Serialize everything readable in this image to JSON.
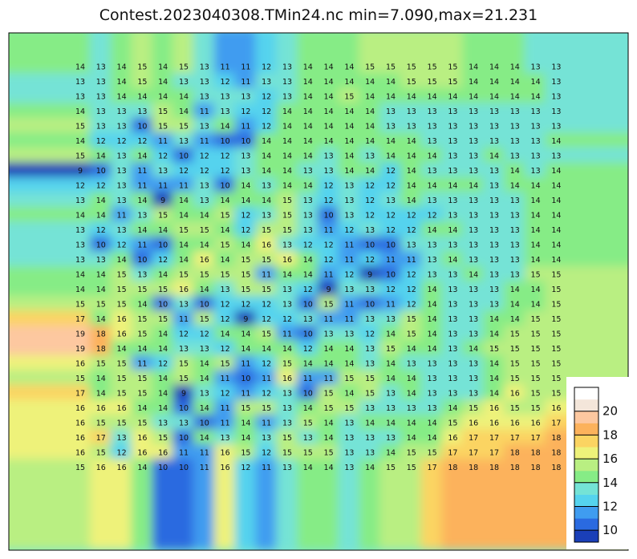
{
  "title": "Contest.2023040308.TMin24.nc min=7.090,max=21.231",
  "chart_data": {
    "type": "heatmap",
    "title": "Contest.2023040308.TMin24.nc min=7.090,max=21.231",
    "min": 7.09,
    "max": 21.231,
    "colorbar": {
      "placement": "bottom-right inset",
      "tick_labels": [
        "10",
        "12",
        "14",
        "16",
        "18",
        "20"
      ],
      "levels": [
        9,
        10,
        11,
        12,
        13,
        14,
        15,
        16,
        17,
        18,
        19,
        20,
        21
      ],
      "colors": [
        "#1a3fb8",
        "#2a6ae0",
        "#3f9cf0",
        "#55d3ee",
        "#74e3d6",
        "#86ec86",
        "#b9ef82",
        "#eef27a",
        "#fbd462",
        "#fcb25c",
        "#fdc8a0",
        "#f4e6da",
        "#ffffff"
      ]
    },
    "grid_values": [
      [
        14,
        13,
        14,
        15,
        14,
        15,
        13,
        11,
        11,
        12,
        13,
        14,
        14,
        14,
        15,
        15,
        15,
        15,
        15,
        14,
        14,
        14,
        13,
        13
      ],
      [
        13,
        13,
        14,
        15,
        14,
        13,
        13,
        12,
        11,
        13,
        13,
        14,
        14,
        14,
        14,
        14,
        15,
        15,
        15,
        14,
        14,
        14,
        14,
        13
      ],
      [
        13,
        13,
        14,
        14,
        14,
        14,
        13,
        13,
        13,
        12,
        13,
        14,
        14,
        15,
        14,
        14,
        14,
        14,
        14,
        14,
        14,
        14,
        14,
        13
      ],
      [
        14,
        13,
        13,
        13,
        15,
        14,
        11,
        13,
        12,
        12,
        14,
        14,
        14,
        14,
        14,
        13,
        13,
        13,
        13,
        13,
        13,
        13,
        13,
        13
      ],
      [
        15,
        13,
        13,
        10,
        15,
        15,
        13,
        14,
        11,
        12,
        14,
        14,
        14,
        14,
        14,
        13,
        13,
        13,
        13,
        13,
        13,
        13,
        13,
        13
      ],
      [
        14,
        12,
        12,
        12,
        11,
        13,
        11,
        10,
        10,
        14,
        14,
        14,
        14,
        14,
        14,
        14,
        14,
        13,
        13,
        13,
        13,
        13,
        13,
        14
      ],
      [
        15,
        14,
        13,
        14,
        12,
        10,
        12,
        12,
        13,
        14,
        14,
        14,
        13,
        14,
        13,
        14,
        14,
        14,
        13,
        13,
        14,
        13,
        13,
        13
      ],
      [
        9,
        10,
        13,
        11,
        13,
        12,
        12,
        12,
        13,
        14,
        14,
        13,
        13,
        14,
        14,
        12,
        14,
        13,
        13,
        13,
        13,
        14,
        13,
        14
      ],
      [
        12,
        12,
        13,
        11,
        11,
        11,
        13,
        10,
        14,
        13,
        14,
        14,
        12,
        13,
        12,
        12,
        14,
        14,
        14,
        14,
        13,
        14,
        14,
        14
      ],
      [
        13,
        14,
        13,
        14,
        9,
        14,
        13,
        14,
        14,
        14,
        15,
        13,
        12,
        13,
        12,
        13,
        14,
        13,
        13,
        13,
        13,
        13,
        14,
        14
      ],
      [
        14,
        14,
        11,
        13,
        15,
        14,
        14,
        15,
        12,
        13,
        15,
        13,
        10,
        13,
        12,
        12,
        12,
        12,
        13,
        13,
        13,
        13,
        14,
        14
      ],
      [
        13,
        12,
        13,
        14,
        14,
        15,
        15,
        14,
        12,
        15,
        15,
        13,
        11,
        12,
        13,
        12,
        12,
        14,
        14,
        13,
        13,
        13,
        14,
        14
      ],
      [
        13,
        10,
        12,
        11,
        10,
        14,
        14,
        15,
        14,
        16,
        13,
        12,
        12,
        11,
        10,
        10,
        13,
        13,
        13,
        13,
        13,
        13,
        14,
        14
      ],
      [
        13,
        13,
        14,
        10,
        12,
        14,
        16,
        14,
        15,
        15,
        16,
        14,
        12,
        11,
        12,
        11,
        11,
        13,
        14,
        13,
        13,
        13,
        14,
        14
      ],
      [
        14,
        14,
        15,
        13,
        14,
        15,
        15,
        15,
        15,
        11,
        14,
        14,
        11,
        12,
        9,
        10,
        12,
        13,
        13,
        14,
        13,
        13,
        15,
        15
      ],
      [
        14,
        14,
        15,
        15,
        15,
        16,
        14,
        13,
        15,
        15,
        13,
        12,
        9,
        13,
        13,
        12,
        12,
        14,
        13,
        13,
        13,
        14,
        14,
        15
      ],
      [
        15,
        15,
        15,
        14,
        10,
        13,
        10,
        12,
        12,
        12,
        13,
        10,
        15,
        11,
        10,
        11,
        12,
        14,
        13,
        13,
        13,
        14,
        14,
        15
      ],
      [
        17,
        14,
        16,
        15,
        15,
        11,
        15,
        12,
        9,
        12,
        12,
        13,
        11,
        11,
        13,
        13,
        15,
        14,
        13,
        13,
        14,
        14,
        15,
        15
      ],
      [
        19,
        18,
        16,
        15,
        14,
        12,
        12,
        14,
        14,
        15,
        11,
        10,
        13,
        13,
        12,
        14,
        15,
        14,
        13,
        13,
        14,
        15,
        15,
        15
      ],
      [
        19,
        18,
        14,
        14,
        14,
        13,
        13,
        12,
        14,
        14,
        14,
        12,
        14,
        14,
        13,
        15,
        14,
        14,
        13,
        14,
        15,
        15,
        15,
        15
      ],
      [
        16,
        15,
        15,
        11,
        12,
        15,
        14,
        15,
        11,
        12,
        15,
        14,
        14,
        14,
        13,
        14,
        13,
        13,
        13,
        13,
        14,
        15,
        15,
        15
      ],
      [
        15,
        14,
        15,
        15,
        14,
        15,
        14,
        11,
        10,
        11,
        16,
        11,
        11,
        15,
        15,
        14,
        14,
        13,
        13,
        13,
        14,
        15,
        15,
        15
      ],
      [
        17,
        14,
        15,
        15,
        14,
        9,
        13,
        12,
        11,
        12,
        13,
        10,
        15,
        14,
        15,
        13,
        14,
        13,
        13,
        13,
        14,
        16,
        15,
        15
      ],
      [
        16,
        16,
        16,
        14,
        14,
        10,
        14,
        11,
        15,
        15,
        13,
        14,
        15,
        15,
        13,
        13,
        13,
        13,
        14,
        15,
        16,
        15,
        15,
        16
      ],
      [
        16,
        15,
        15,
        15,
        13,
        13,
        10,
        11,
        14,
        11,
        13,
        15,
        14,
        13,
        14,
        14,
        14,
        14,
        15,
        16,
        16,
        16,
        16,
        17
      ],
      [
        16,
        17,
        13,
        16,
        15,
        10,
        14,
        13,
        14,
        13,
        15,
        13,
        14,
        13,
        13,
        13,
        14,
        14,
        16,
        17,
        17,
        17,
        17,
        18
      ],
      [
        16,
        15,
        12,
        16,
        16,
        11,
        11,
        16,
        15,
        12,
        15,
        15,
        15,
        13,
        13,
        14,
        15,
        15,
        17,
        17,
        17,
        18,
        18,
        18
      ],
      [
        15,
        16,
        16,
        14,
        10,
        10,
        11,
        16,
        12,
        11,
        13,
        14,
        14,
        13,
        14,
        15,
        15,
        17,
        18,
        18,
        18,
        18,
        18,
        18
      ]
    ]
  }
}
